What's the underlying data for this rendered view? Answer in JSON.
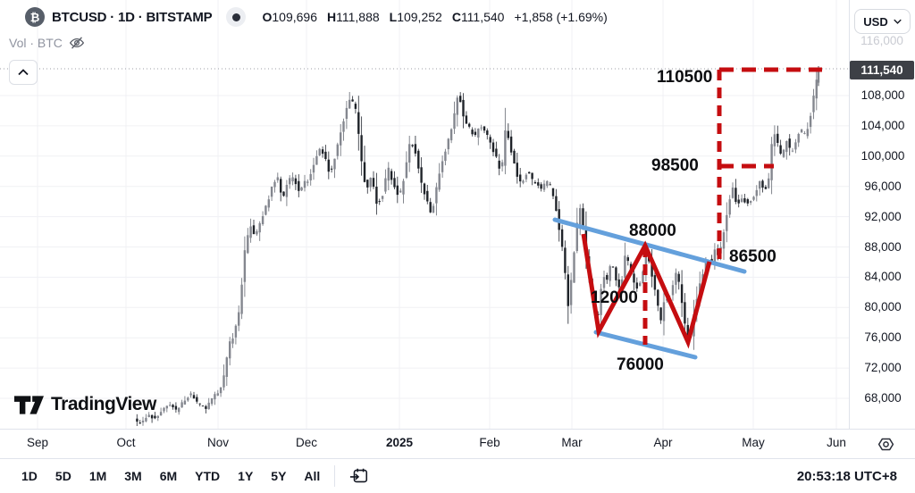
{
  "topbar": {
    "symbol_title": "BTCUSD · 1D · BITSTAMP",
    "btc_glyph": "₿",
    "ohlc": {
      "o_label": "O",
      "o": "109,696",
      "h_label": "H",
      "h": "111,888",
      "l_label": "L",
      "l": "109,252",
      "c_label": "C",
      "c": "111,540",
      "change": "+1,858 (+1.69%)"
    },
    "volume_label": "Vol · BTC",
    "currency_selector": "USD"
  },
  "price_axis": {
    "ticks": [
      {
        "label": "108,000",
        "value": 108000
      },
      {
        "label": "104,000",
        "value": 104000
      },
      {
        "label": "100,000",
        "value": 100000
      },
      {
        "label": "96,000",
        "value": 96000
      },
      {
        "label": "92,000",
        "value": 92000
      },
      {
        "label": "88,000",
        "value": 88000
      },
      {
        "label": "84,000",
        "value": 84000
      },
      {
        "label": "80,000",
        "value": 80000
      },
      {
        "label": "76,000",
        "value": 76000
      },
      {
        "label": "72,000",
        "value": 72000
      },
      {
        "label": "68,000",
        "value": 68000
      }
    ],
    "faint_tick": "116,000",
    "last_price_badge": "111,540"
  },
  "time_axis": {
    "months": [
      "Sep",
      "Oct",
      "Nov",
      "Dec",
      "2025",
      "Feb",
      "Mar",
      "Apr",
      "May",
      "Jun"
    ],
    "bold_index": 4
  },
  "toolbar": {
    "ranges": [
      "1D",
      "5D",
      "1M",
      "3M",
      "6M",
      "YTD",
      "1Y",
      "5Y",
      "All"
    ],
    "clock": "20:53:18 UTC+8"
  },
  "logo": {
    "text": "TradingView"
  },
  "annotations": {
    "colors": {
      "pattern_red": "#c50d10",
      "trendline_blue": "#64a0dc"
    },
    "labels": [
      {
        "text": "110500"
      },
      {
        "text": "98500"
      },
      {
        "text": "88000"
      },
      {
        "text": "86500"
      },
      {
        "text": "12000"
      },
      {
        "text": "76000"
      }
    ]
  },
  "chart_data": {
    "type": "candlestick",
    "symbol": "BTCUSD",
    "interval": "1D",
    "exchange": "BITSTAMP",
    "title": "BTCUSD · 1D · BITSTAMP",
    "current_ohlc": {
      "open": 109696,
      "high": 111888,
      "low": 109252,
      "close": 111540,
      "change": 1858,
      "change_pct": 1.69
    },
    "y_ticks": [
      68000,
      72000,
      76000,
      80000,
      84000,
      88000,
      92000,
      96000,
      100000,
      104000,
      108000
    ],
    "ylim": [
      64000,
      116000
    ],
    "x_months": [
      "Sep",
      "Oct",
      "Nov",
      "Dec",
      "2025",
      "Feb",
      "Mar",
      "Apr",
      "May",
      "Jun"
    ],
    "grid": true,
    "last_price": 111540,
    "pattern_analysis": {
      "pattern": "falling channel with W-shaped bottom, measured-move breakout",
      "w_zigzag_prices": [
        89700,
        76900,
        88000,
        75400,
        86100
      ],
      "upper_trendline_prices": [
        92000,
        85800
      ],
      "lower_trendline_prices": [
        77200,
        73900
      ],
      "peak_level": 88000,
      "low_level": 76000,
      "pattern_height": 12000,
      "breakout_level": 86500,
      "intermediate_target": 98500,
      "final_target": 110500
    },
    "price_path": [
      [
        150,
        65200
      ],
      [
        158,
        64600
      ],
      [
        166,
        65800
      ],
      [
        174,
        65200
      ],
      [
        182,
        66400
      ],
      [
        190,
        67300
      ],
      [
        198,
        66200
      ],
      [
        206,
        67800
      ],
      [
        214,
        68600
      ],
      [
        222,
        67200
      ],
      [
        230,
        66600
      ],
      [
        238,
        68000
      ],
      [
        246,
        69200
      ],
      [
        252,
        71500
      ],
      [
        256,
        75200
      ],
      [
        262,
        76400
      ],
      [
        268,
        79800
      ],
      [
        274,
        87500
      ],
      [
        280,
        90800
      ],
      [
        286,
        89400
      ],
      [
        292,
        91600
      ],
      [
        298,
        93400
      ],
      [
        304,
        95800
      ],
      [
        310,
        97600
      ],
      [
        316,
        94200
      ],
      [
        322,
        96800
      ],
      [
        328,
        97200
      ],
      [
        334,
        95600
      ],
      [
        340,
        96400
      ],
      [
        346,
        97000
      ],
      [
        352,
        99200
      ],
      [
        358,
        101200
      ],
      [
        364,
        99600
      ],
      [
        370,
        97400
      ],
      [
        376,
        100800
      ],
      [
        382,
        103600
      ],
      [
        388,
        106200
      ],
      [
        393,
        107800
      ],
      [
        398,
        106000
      ],
      [
        404,
        99800
      ],
      [
        410,
        95200
      ],
      [
        416,
        97400
      ],
      [
        422,
        93400
      ],
      [
        428,
        95000
      ],
      [
        434,
        98600
      ],
      [
        440,
        96200
      ],
      [
        447,
        94600
      ],
      [
        453,
        97800
      ],
      [
        459,
        102200
      ],
      [
        465,
        100400
      ],
      [
        471,
        96800
      ],
      [
        477,
        94400
      ],
      [
        483,
        92200
      ],
      [
        489,
        96200
      ],
      [
        495,
        99600
      ],
      [
        501,
        101800
      ],
      [
        507,
        104600
      ],
      [
        513,
        108600
      ],
      [
        519,
        105200
      ],
      [
        525,
        103800
      ],
      [
        531,
        102400
      ],
      [
        537,
        104200
      ],
      [
        543,
        103200
      ],
      [
        549,
        101800
      ],
      [
        555,
        99800
      ],
      [
        561,
        97600
      ],
      [
        566,
        104200
      ],
      [
        571,
        101400
      ],
      [
        576,
        98600
      ],
      [
        581,
        96400
      ],
      [
        586,
        96800
      ],
      [
        591,
        98200
      ],
      [
        596,
        96600
      ],
      [
        601,
        96200
      ],
      [
        606,
        95600
      ],
      [
        611,
        96600
      ],
      [
        616,
        96000
      ],
      [
        621,
        93800
      ],
      [
        626,
        90200
      ],
      [
        631,
        86400
      ],
      [
        636,
        79800
      ],
      [
        640,
        84600
      ],
      [
        645,
        90400
      ],
      [
        650,
        93800
      ],
      [
        655,
        87600
      ],
      [
        660,
        83200
      ],
      [
        664,
        80400
      ],
      [
        668,
        77600
      ],
      [
        672,
        82400
      ],
      [
        676,
        84200
      ],
      [
        680,
        83400
      ],
      [
        684,
        86800
      ],
      [
        688,
        84200
      ],
      [
        692,
        82400
      ],
      [
        696,
        83800
      ],
      [
        700,
        87200
      ],
      [
        704,
        85400
      ],
      [
        708,
        84000
      ],
      [
        712,
        82600
      ],
      [
        716,
        83200
      ],
      [
        720,
        84800
      ],
      [
        724,
        87600
      ],
      [
        728,
        85200
      ],
      [
        732,
        82800
      ],
      [
        736,
        80200
      ],
      [
        740,
        78200
      ],
      [
        744,
        81600
      ],
      [
        748,
        80800
      ],
      [
        752,
        82400
      ],
      [
        756,
        84800
      ],
      [
        760,
        83200
      ],
      [
        764,
        79800
      ],
      [
        768,
        76400
      ],
      [
        772,
        75200
      ],
      [
        776,
        78800
      ],
      [
        780,
        81400
      ],
      [
        784,
        83400
      ],
      [
        788,
        85200
      ],
      [
        792,
        86800
      ],
      [
        796,
        85400
      ],
      [
        800,
        87600
      ],
      [
        805,
        86600
      ],
      [
        810,
        90200
      ],
      [
        815,
        93600
      ],
      [
        820,
        95800
      ],
      [
        825,
        93400
      ],
      [
        830,
        94600
      ],
      [
        835,
        93800
      ],
      [
        840,
        94200
      ],
      [
        845,
        94800
      ],
      [
        850,
        96600
      ],
      [
        855,
        95400
      ],
      [
        860,
        96800
      ],
      [
        865,
        103400
      ],
      [
        870,
        101800
      ],
      [
        875,
        99400
      ],
      [
        880,
        102400
      ],
      [
        885,
        100200
      ],
      [
        890,
        101400
      ],
      [
        895,
        103600
      ],
      [
        900,
        102800
      ],
      [
        905,
        104200
      ],
      [
        909,
        106800
      ],
      [
        912,
        108600
      ],
      [
        915,
        111540
      ]
    ]
  }
}
